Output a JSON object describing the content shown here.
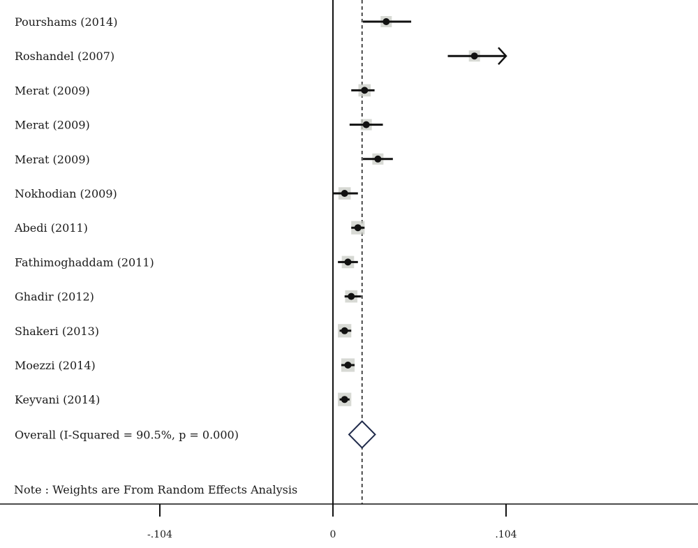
{
  "chart_data": {
    "type": "forest",
    "x_ticks": [
      {
        "value": -0.104,
        "label": "-.104"
      },
      {
        "value": 0,
        "label": "0"
      },
      {
        "value": 0.104,
        "label": ".104"
      }
    ],
    "xlim": [
      -0.2,
      0.215
    ],
    "reference_line": 0,
    "pooled_estimate": 0.0175,
    "studies": [
      {
        "label": "Pourshams (2014)",
        "estimate": 0.032,
        "lower": 0.018,
        "upper": 0.047,
        "weight": 1.0
      },
      {
        "label": "Roshandel (2007)",
        "estimate": 0.085,
        "lower": 0.069,
        "upper": 0.104,
        "arrow_right": true,
        "weight": 1.0
      },
      {
        "label": "Merat (2009)",
        "estimate": 0.019,
        "lower": 0.011,
        "upper": 0.025,
        "weight": 1.1
      },
      {
        "label": "Merat (2009)",
        "estimate": 0.02,
        "lower": 0.01,
        "upper": 0.03,
        "weight": 1.0
      },
      {
        "label": "Merat (2009)",
        "estimate": 0.027,
        "lower": 0.018,
        "upper": 0.036,
        "weight": 1.0
      },
      {
        "label": "Nokhodian (2009)",
        "estimate": 0.007,
        "lower": 0.0,
        "upper": 0.015,
        "weight": 1.1
      },
      {
        "label": "Abedi (2011)",
        "estimate": 0.015,
        "lower": 0.011,
        "upper": 0.019,
        "weight": 1.2
      },
      {
        "label": "Fathimoghaddam (2011)",
        "estimate": 0.009,
        "lower": 0.003,
        "upper": 0.015,
        "weight": 1.1
      },
      {
        "label": "Ghadir (2012)",
        "estimate": 0.011,
        "lower": 0.007,
        "upper": 0.017,
        "weight": 1.1
      },
      {
        "label": "Shakeri (2013)",
        "estimate": 0.007,
        "lower": 0.004,
        "upper": 0.011,
        "weight": 1.2
      },
      {
        "label": "Moezzi (2014)",
        "estimate": 0.009,
        "lower": 0.005,
        "upper": 0.013,
        "weight": 1.2
      },
      {
        "label": "Keyvani (2014)",
        "estimate": 0.007,
        "lower": 0.004,
        "upper": 0.01,
        "weight": 1.2
      }
    ],
    "overall": {
      "label": "Overall (I-Squared = 90.5%, p = 0.000)",
      "estimate": 0.0175,
      "lower": 0.013,
      "upper": 0.022
    },
    "note": "Note : Weights are From Random Effects Analysis",
    "colors": {
      "line": "#111111",
      "dot": "#111111",
      "weight_box": "#c9ccc6",
      "diamond": "#1f2a4a",
      "dashed": "#222222"
    }
  }
}
